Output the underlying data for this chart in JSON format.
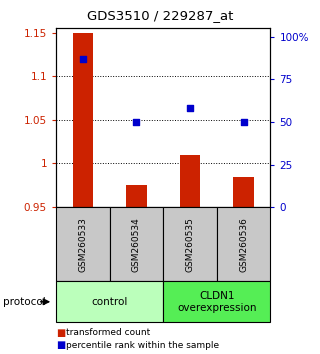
{
  "title": "GDS3510 / 229287_at",
  "samples": [
    "GSM260533",
    "GSM260534",
    "GSM260535",
    "GSM260536"
  ],
  "transformed_counts": [
    1.15,
    0.975,
    1.01,
    0.985
  ],
  "percentile_ranks": [
    87,
    50,
    58,
    50
  ],
  "ylim_left": [
    0.95,
    1.155
  ],
  "ylim_right": [
    0,
    105
  ],
  "yticks_left": [
    0.95,
    1.0,
    1.05,
    1.1,
    1.15
  ],
  "ytick_labels_left": [
    "0.95",
    "1",
    "1.05",
    "1.1",
    "1.15"
  ],
  "yticks_right": [
    0,
    25,
    50,
    75,
    100
  ],
  "ytick_labels_right": [
    "0",
    "25",
    "50",
    "75",
    "100%"
  ],
  "bar_color": "#cc2200",
  "square_color": "#0000cc",
  "baseline": 0.95,
  "groups": [
    {
      "label": "control",
      "samples": [
        0,
        1
      ],
      "color": "#bbffbb"
    },
    {
      "label": "CLDN1\noverexpression",
      "samples": [
        2,
        3
      ],
      "color": "#55ee55"
    }
  ],
  "legend_entries": [
    {
      "color": "#cc2200",
      "label": "transformed count"
    },
    {
      "color": "#0000cc",
      "label": "percentile rank within the sample"
    }
  ],
  "protocol_label": "protocol",
  "bg_color": "#ffffff"
}
